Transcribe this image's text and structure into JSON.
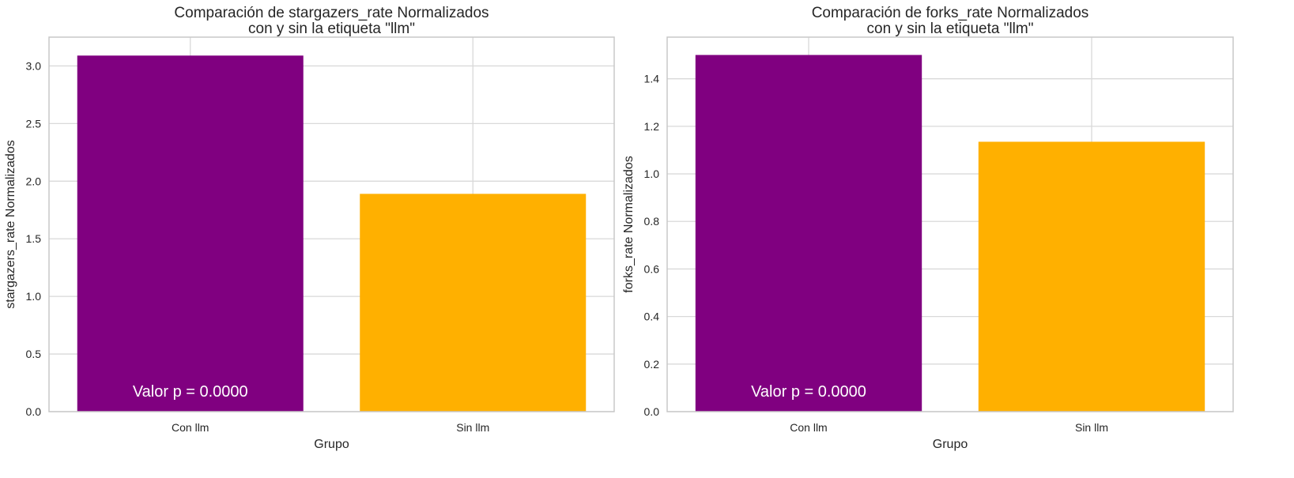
{
  "colors": {
    "con": "#800080",
    "sin": "#FFB000",
    "grid": "#d9d9d9",
    "frame": "#c8c8c8"
  },
  "chart_data": [
    {
      "type": "bar",
      "title": [
        "Comparación de stargazers_rate Normalizados",
        "con y sin la etiqueta \"llm\""
      ],
      "xlabel": "Grupo",
      "ylabel": "stargazers_rate Normalizados",
      "categories": [
        "Con llm",
        "Sin llm"
      ],
      "values": [
        3.09,
        1.89
      ],
      "ylim": [
        0,
        3.25
      ],
      "yticks": [
        "0.0",
        "0.5",
        "1.0",
        "1.5",
        "2.0",
        "2.5",
        "3.0"
      ],
      "annotation": "Valor p = 0.0000",
      "grid": true,
      "legend": "none"
    },
    {
      "type": "bar",
      "title": [
        "Comparación de forks_rate Normalizados",
        "con y sin la etiqueta \"llm\""
      ],
      "xlabel": "Grupo",
      "ylabel": "forks_rate Normalizados",
      "categories": [
        "Con llm",
        "Sin llm"
      ],
      "values": [
        1.5,
        1.135
      ],
      "ylim": [
        0,
        1.575
      ],
      "yticks": [
        "0.0",
        "0.2",
        "0.4",
        "0.6",
        "0.8",
        "1.0",
        "1.2",
        "1.4"
      ],
      "annotation": "Valor p = 0.0000",
      "grid": true,
      "legend": "none"
    }
  ]
}
